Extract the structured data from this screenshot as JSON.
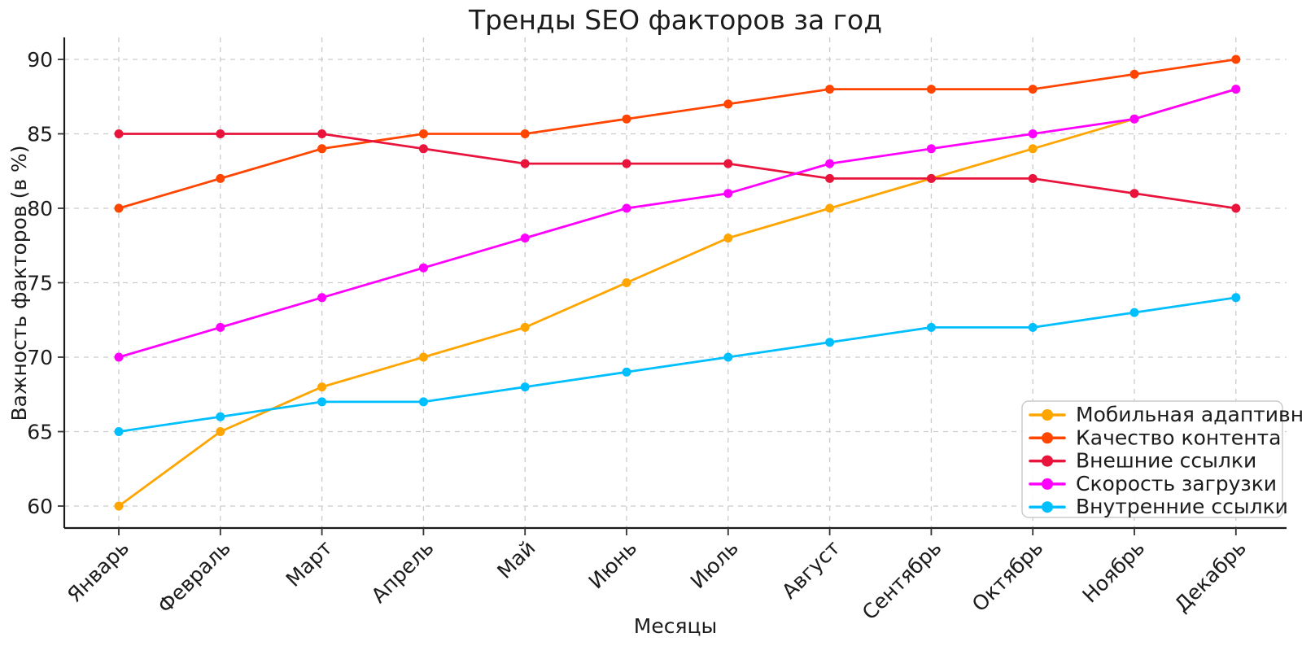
{
  "chart_data": {
    "type": "line",
    "title": "Тренды SEO факторов за год",
    "xlabel": "Месяцы",
    "ylabel": "Важность факторов (в %)",
    "categories": [
      "Январь",
      "Февраль",
      "Март",
      "Апрель",
      "Май",
      "Июнь",
      "Июль",
      "Август",
      "Сентябрь",
      "Октябрь",
      "Ноябрь",
      "Декабрь"
    ],
    "yticks": [
      60,
      65,
      70,
      75,
      80,
      85,
      90
    ],
    "ylim": [
      58.5,
      91.5
    ],
    "grid": true,
    "grid_style": "dashed",
    "legend_position": "lower right",
    "background_color": "#ffffff",
    "text_color": "#1c1c1c",
    "grid_color": "#cccccc",
    "series": [
      {
        "name": "Мобильная адаптивность",
        "color": "#FFA500",
        "values": [
          60,
          65,
          68,
          70,
          72,
          75,
          78,
          80,
          82,
          84,
          86,
          88
        ]
      },
      {
        "name": "Качество контента",
        "color": "#FF4500",
        "values": [
          80,
          82,
          84,
          85,
          85,
          86,
          87,
          88,
          88,
          88,
          89,
          90
        ]
      },
      {
        "name": "Внешние ссылки",
        "color": "#E8143C",
        "values": [
          85,
          85,
          85,
          84,
          83,
          83,
          83,
          82,
          82,
          82,
          81,
          80
        ]
      },
      {
        "name": "Скорость загрузки",
        "color": "#FF00FF",
        "values": [
          70,
          72,
          74,
          76,
          78,
          80,
          81,
          83,
          84,
          85,
          86,
          88
        ]
      },
      {
        "name": "Внутренние ссылки",
        "color": "#00BFFF",
        "values": [
          65,
          66,
          67,
          67,
          68,
          69,
          70,
          71,
          72,
          72,
          73,
          74
        ]
      }
    ]
  }
}
